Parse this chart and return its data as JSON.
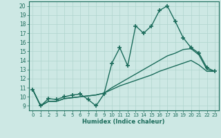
{
  "xlabel": "Humidex (Indice chaleur)",
  "background_color": "#cde8e4",
  "grid_color": "#b0d4ce",
  "line_color": "#1a6b5a",
  "xlim": [
    -0.5,
    23.5
  ],
  "ylim": [
    8.5,
    20.5
  ],
  "yticks": [
    9,
    10,
    11,
    12,
    13,
    14,
    15,
    16,
    17,
    18,
    19,
    20
  ],
  "xticks": [
    0,
    1,
    2,
    3,
    4,
    5,
    6,
    7,
    8,
    9,
    10,
    11,
    12,
    13,
    14,
    15,
    16,
    17,
    18,
    19,
    20,
    21,
    22,
    23
  ],
  "series": [
    {
      "x": [
        0,
        1,
        2,
        3,
        4,
        5,
        6,
        7,
        8,
        9,
        10,
        11,
        12,
        13,
        14,
        15,
        16,
        17,
        18,
        19,
        20,
        21,
        22,
        23
      ],
      "y": [
        10.8,
        9.0,
        9.8,
        9.7,
        10.0,
        10.2,
        10.3,
        9.7,
        9.0,
        10.3,
        13.7,
        15.4,
        13.4,
        17.8,
        17.0,
        17.8,
        19.5,
        20.0,
        18.3,
        16.5,
        15.4,
        14.8,
        13.2,
        12.8
      ],
      "marker": "+",
      "markersize": 4,
      "linewidth": 1.0,
      "has_marker": true
    },
    {
      "x": [
        0,
        1,
        2,
        3,
        4,
        5,
        6,
        7,
        8,
        9,
        10,
        11,
        12,
        13,
        14,
        15,
        16,
        17,
        18,
        19,
        20,
        21,
        22,
        23
      ],
      "y": [
        10.8,
        9.0,
        9.5,
        9.5,
        9.8,
        9.9,
        10.0,
        10.1,
        10.2,
        10.4,
        11.0,
        11.5,
        12.0,
        12.5,
        13.0,
        13.5,
        14.0,
        14.5,
        14.8,
        15.2,
        15.3,
        14.6,
        13.0,
        12.8
      ],
      "marker": null,
      "markersize": 0,
      "linewidth": 1.0,
      "has_marker": false
    },
    {
      "x": [
        0,
        1,
        2,
        3,
        4,
        5,
        6,
        7,
        8,
        9,
        10,
        11,
        12,
        13,
        14,
        15,
        16,
        17,
        18,
        19,
        20,
        21,
        22,
        23
      ],
      "y": [
        10.8,
        9.0,
        9.5,
        9.5,
        9.8,
        9.9,
        10.0,
        10.1,
        10.2,
        10.4,
        10.8,
        11.2,
        11.5,
        11.8,
        12.1,
        12.4,
        12.8,
        13.1,
        13.4,
        13.7,
        14.0,
        13.5,
        12.8,
        12.8
      ],
      "marker": null,
      "markersize": 0,
      "linewidth": 1.0,
      "has_marker": false
    }
  ]
}
